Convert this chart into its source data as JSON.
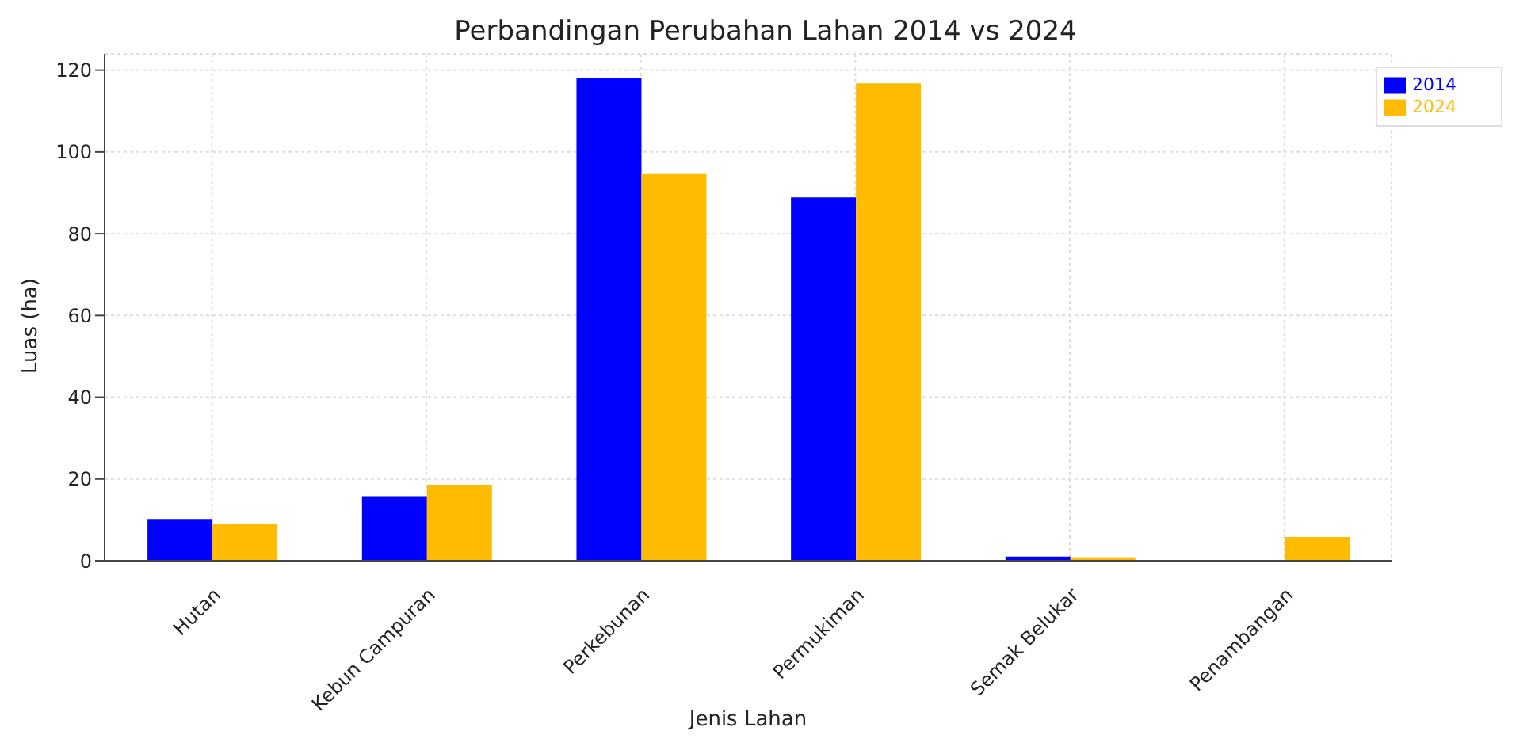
{
  "chart_data": {
    "type": "bar",
    "title": "Perbandingan Perubahan Lahan 2014 vs 2024",
    "xlabel": "Jenis Lahan",
    "ylabel": "Luas (ha)",
    "categories": [
      "Hutan",
      "Kebun Campuran",
      "Perkebunan",
      "Permukiman",
      "Semak Belukar",
      "Penambangan"
    ],
    "series": [
      {
        "name": "2014",
        "color": "#0000ff",
        "values": [
          10.2,
          15.8,
          118,
          88.9,
          1,
          0
        ]
      },
      {
        "name": "2024",
        "color": "#ffbb00",
        "values": [
          9,
          18.6,
          94.6,
          116.8,
          0.8,
          5.8
        ]
      }
    ],
    "ylim": [
      0,
      124
    ],
    "yticks": [
      0,
      20,
      40,
      60,
      80,
      100,
      120
    ],
    "grid": true,
    "legend": "top right"
  }
}
